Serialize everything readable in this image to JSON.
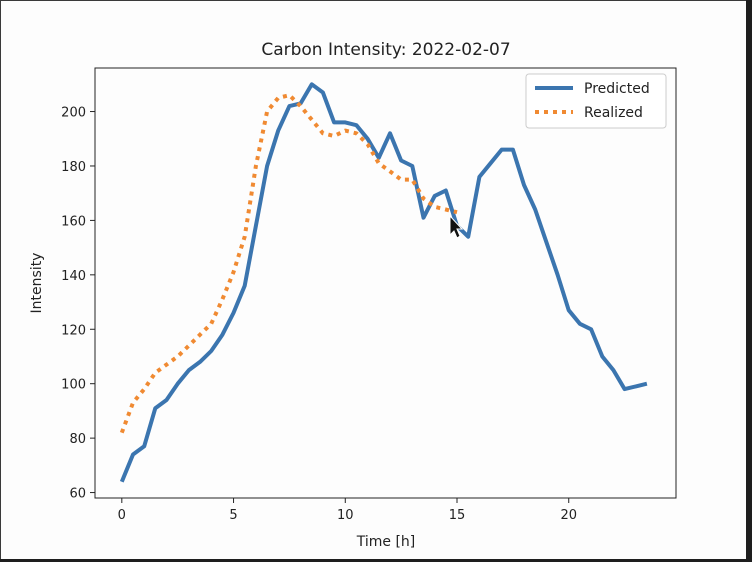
{
  "chart_data": {
    "type": "line",
    "title": "Carbon Intensity: 2022-02-07",
    "xlabel": "Time [h]",
    "ylabel": "Intensity",
    "xlim": [
      -1.2,
      24.8
    ],
    "ylim": [
      58,
      216
    ],
    "xticks": [
      0,
      5,
      10,
      15,
      20
    ],
    "yticks": [
      60,
      80,
      100,
      120,
      140,
      160,
      180,
      200
    ],
    "grid": false,
    "legend_position": "top-right",
    "series": [
      {
        "name": "Predicted",
        "color": "#3b75af",
        "style": "solid",
        "x": [
          0,
          0.5,
          1,
          1.5,
          2,
          2.5,
          3,
          3.5,
          4,
          4.5,
          5,
          5.5,
          6,
          6.5,
          7,
          7.5,
          8,
          8.5,
          9,
          9.5,
          10,
          10.5,
          11,
          11.5,
          12,
          12.5,
          13,
          13.5,
          14,
          14.5,
          15,
          15.5,
          16,
          16.5,
          17,
          17.5,
          18,
          18.5,
          19,
          19.5,
          20,
          20.5,
          21,
          21.5,
          22,
          22.5,
          23,
          23.5
        ],
        "values": [
          64,
          74,
          77,
          91,
          94,
          100,
          105,
          108,
          112,
          118,
          126,
          136,
          158,
          180,
          193,
          202,
          203,
          210,
          207,
          196,
          196,
          195,
          190,
          183,
          192,
          182,
          180,
          161,
          169,
          171,
          158,
          154,
          176,
          181,
          186,
          186,
          173,
          164,
          152,
          140,
          127,
          122,
          120,
          110,
          105,
          98,
          99,
          100
        ]
      },
      {
        "name": "Realized",
        "color": "#f08a32",
        "style": "dotted",
        "x": [
          0,
          0.5,
          1,
          1.5,
          2,
          2.5,
          3,
          3.5,
          4,
          4.5,
          5,
          5.5,
          6,
          6.5,
          7,
          7.5,
          8,
          8.5,
          9,
          9.5,
          10,
          10.5,
          11,
          11.5,
          12,
          12.5,
          13,
          13.5,
          14,
          14.5,
          15
        ],
        "values": [
          82,
          93,
          98,
          104,
          107,
          110,
          114,
          118,
          122,
          131,
          141,
          154,
          180,
          200,
          205,
          206,
          202,
          197,
          192,
          191,
          193,
          192,
          188,
          181,
          178,
          175,
          175,
          168,
          165,
          164,
          163
        ]
      }
    ]
  }
}
